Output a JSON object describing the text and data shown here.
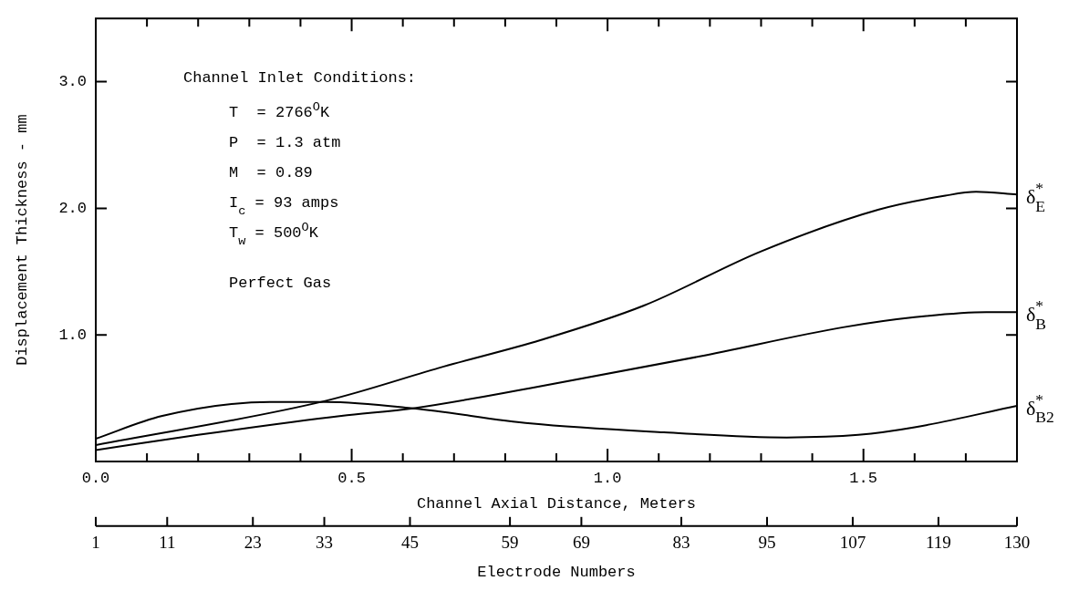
{
  "chart_data": {
    "type": "line",
    "xlabel": "Channel Axial Distance, Meters",
    "ylabel": "Displacement Thickness - mm",
    "x2label": "Electrode Numbers",
    "xlim": [
      0,
      1.8
    ],
    "xticks": [
      {
        "value": 0,
        "label": "0.0"
      },
      {
        "value": 0.1,
        "label": null
      },
      {
        "value": 0.2,
        "label": null
      },
      {
        "value": 0.3,
        "label": null
      },
      {
        "value": 0.4,
        "label": null
      },
      {
        "value": 0.5,
        "label": "0.5"
      },
      {
        "value": 0.6,
        "label": null
      },
      {
        "value": 0.7,
        "label": null
      },
      {
        "value": 0.8,
        "label": null
      },
      {
        "value": 0.9,
        "label": null
      },
      {
        "value": 1.0,
        "label": "1.0"
      },
      {
        "value": 1.1,
        "label": null
      },
      {
        "value": 1.2,
        "label": null
      },
      {
        "value": 1.3,
        "label": null
      },
      {
        "value": 1.4,
        "label": null
      },
      {
        "value": 1.5,
        "label": "1.5"
      },
      {
        "value": 1.6,
        "label": null
      },
      {
        "value": 1.7,
        "label": null
      }
    ],
    "x2lim": [
      1,
      130
    ],
    "x2ticks": [
      1,
      11,
      23,
      33,
      45,
      59,
      69,
      83,
      95,
      107,
      119,
      130
    ],
    "ylim": [
      0,
      3.5
    ],
    "yticks": [
      {
        "value": 1,
        "label": "1.0"
      },
      {
        "value": 2,
        "label": "2.0"
      },
      {
        "value": 3,
        "label": "3.0"
      }
    ],
    "grid": false,
    "legend": "right",
    "marker": "none",
    "line_style": "solid",
    "annotations": [
      "Channel Inlet Conditions:",
      "T  = 2766$^{O}$K",
      "P  = 1.3 atm",
      "M  = 0.89",
      "I$_{c}$ = 93 amps",
      "T$_{w}$ = 500$^{O}$K",
      "Perfect Gas"
    ],
    "series": [
      {
        "name": "δ$^{*}$$_{E}$",
        "color": "#000000",
        "x": [
          0,
          0.45,
          0.68,
          0.87,
          1.07,
          1.3,
          1.53,
          1.66,
          1.72,
          1.8
        ],
        "values": [
          0.13,
          0.48,
          0.75,
          0.96,
          1.23,
          1.66,
          1.99,
          2.1,
          2.13,
          2.11
        ]
      },
      {
        "name": "δ$^{*}$$_{B}$",
        "color": "#000000",
        "x": [
          0,
          0.2,
          0.48,
          0.62,
          0.85,
          1.18,
          1.46,
          1.6,
          1.74,
          1.8
        ],
        "values": [
          0.09,
          0.21,
          0.36,
          0.42,
          0.58,
          0.83,
          1.06,
          1.14,
          1.18,
          1.18
        ]
      },
      {
        "name": "δ$^{*}$$_{B2}$",
        "color": "#000000",
        "x": [
          0,
          0.13,
          0.34,
          0.45,
          0.62,
          0.85,
          1.11,
          1.35,
          1.49,
          1.6,
          1.8
        ],
        "values": [
          0.18,
          0.36,
          0.47,
          0.47,
          0.42,
          0.3,
          0.23,
          0.19,
          0.21,
          0.27,
          0.44
        ]
      }
    ]
  }
}
